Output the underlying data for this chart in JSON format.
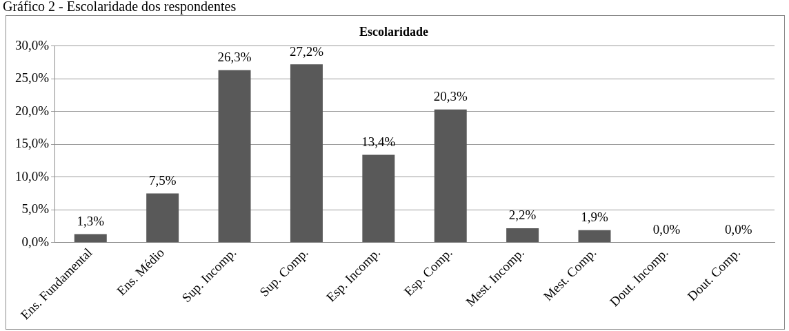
{
  "chart_data": {
    "type": "bar",
    "title": "Escolaridade",
    "annotations": [
      "Gráfico 2 - Escolaridade dos respondentes"
    ],
    "categories": [
      "Ens. Fundamental",
      "Ens. Médio",
      "Sup. Incomp.",
      "Sup. Comp.",
      "Esp. Incomp.",
      "Esp. Comp.",
      "Mest. Incomp.",
      "Mest. Comp.",
      "Dout. Incomp.",
      "Dout. Comp."
    ],
    "values": [
      1.3,
      7.5,
      26.3,
      27.2,
      13.4,
      20.3,
      2.2,
      1.9,
      0,
      0
    ],
    "value_labels": [
      "1,3%",
      "7,5%",
      "26,3%",
      "27,2%",
      "13,4%",
      "20,3%",
      "2,2%",
      "1,9%",
      "0,0%",
      "0,0%"
    ],
    "color": "#595959",
    "ylim": [
      0,
      30
    ],
    "yticks": [
      {
        "value": 0,
        "label": "0,0%"
      },
      {
        "value": 5,
        "label": "5,0%"
      },
      {
        "value": 10,
        "label": "10,0%"
      },
      {
        "value": 15,
        "label": "15,0%"
      },
      {
        "value": 20,
        "label": "20,0%"
      },
      {
        "value": 25,
        "label": "25,0%"
      },
      {
        "value": 30,
        "label": "30,0%"
      }
    ],
    "grid": "y",
    "legend": false
  }
}
